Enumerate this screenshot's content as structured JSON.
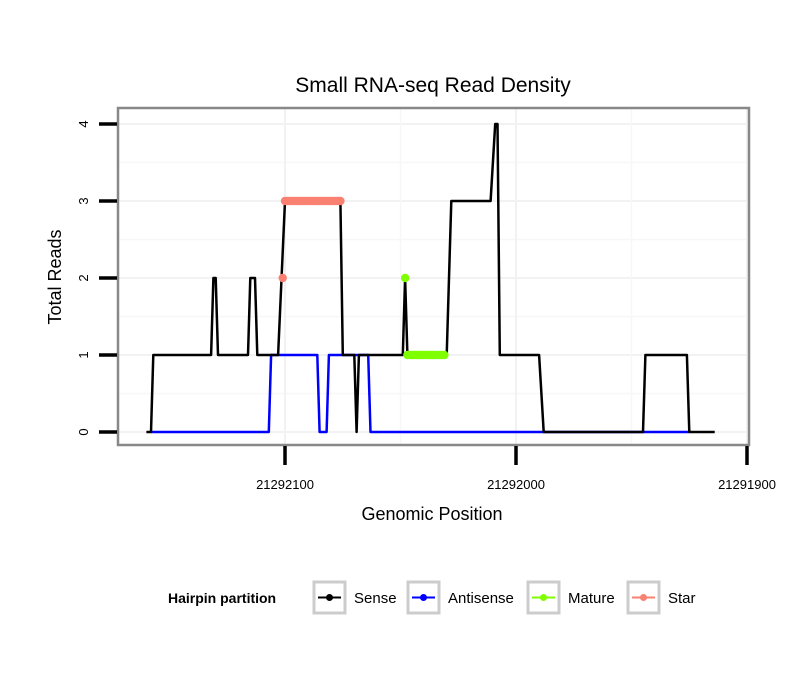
{
  "chart_data": {
    "type": "line",
    "title": "Small RNA-seq Read Density",
    "xlabel": "Genomic Position",
    "ylabel": "Total Reads",
    "xlim": [
      21292160,
      21291900
    ],
    "x_reversed": true,
    "ylim": [
      0,
      4
    ],
    "x_ticks": [
      21292100,
      21292000,
      21291900
    ],
    "x_tick_labels": [
      "21292100",
      "21292000",
      "21291900"
    ],
    "y_ticks": [
      0,
      1,
      2,
      3,
      4
    ],
    "y_tick_labels": [
      "0",
      "1",
      "2",
      "3",
      "4"
    ],
    "grid": true,
    "legend": {
      "title": "Hairpin partition",
      "position": "bottom",
      "entries": [
        {
          "name": "Sense",
          "color": "#000000"
        },
        {
          "name": "Antisense",
          "color": "#0000ff"
        },
        {
          "name": "Mature",
          "color": "#7fff00"
        },
        {
          "name": "Star",
          "color": "#fa8072"
        }
      ]
    },
    "series": [
      {
        "name": "Sense",
        "color": "#000000",
        "kind": "line",
        "points": [
          [
            21292160,
            0
          ],
          [
            21292158,
            0
          ],
          [
            21292157,
            1
          ],
          [
            21292132,
            1
          ],
          [
            21292131,
            2
          ],
          [
            21292130,
            2
          ],
          [
            21292129,
            1
          ],
          [
            21292116,
            1
          ],
          [
            21292115,
            2
          ],
          [
            21292113,
            2
          ],
          [
            21292112,
            1
          ],
          [
            21292103,
            1
          ],
          [
            21292100,
            3
          ],
          [
            21292076,
            3
          ],
          [
            21292075,
            1
          ],
          [
            21292070,
            1
          ],
          [
            21292069,
            0
          ],
          [
            21292068,
            1
          ],
          [
            21292049,
            1
          ],
          [
            21292048,
            2
          ],
          [
            21292047,
            1
          ],
          [
            21292030,
            1
          ],
          [
            21292028,
            3
          ],
          [
            21292011,
            3
          ],
          [
            21292009,
            4
          ],
          [
            21292008,
            4
          ],
          [
            21292007,
            1
          ],
          [
            21291990,
            1
          ],
          [
            21291988,
            0
          ],
          [
            21291945,
            0
          ],
          [
            21291944,
            1
          ],
          [
            21291926,
            1
          ],
          [
            21291925,
            0
          ],
          [
            21291914,
            0
          ]
        ]
      },
      {
        "name": "Antisense",
        "color": "#0000ff",
        "kind": "line",
        "points": [
          [
            21292158,
            0
          ],
          [
            21292107,
            0
          ],
          [
            21292106,
            1
          ],
          [
            21292086,
            1
          ],
          [
            21292085,
            0
          ],
          [
            21292082,
            0
          ],
          [
            21292081,
            1
          ],
          [
            21292064,
            1
          ],
          [
            21292063,
            0
          ],
          [
            21291925,
            0
          ]
        ]
      },
      {
        "name": "Mature",
        "color": "#7fff00",
        "kind": "points",
        "points": [
          [
            21292048,
            2
          ],
          [
            21292047,
            1
          ],
          [
            21292046,
            1
          ],
          [
            21292045,
            1
          ],
          [
            21292044,
            1
          ],
          [
            21292043,
            1
          ],
          [
            21292042,
            1
          ],
          [
            21292041,
            1
          ],
          [
            21292040,
            1
          ],
          [
            21292039,
            1
          ],
          [
            21292038,
            1
          ],
          [
            21292037,
            1
          ],
          [
            21292036,
            1
          ],
          [
            21292035,
            1
          ],
          [
            21292034,
            1
          ],
          [
            21292033,
            1
          ],
          [
            21292032,
            1
          ],
          [
            21292031,
            1
          ]
        ]
      },
      {
        "name": "Star",
        "color": "#fa8072",
        "kind": "points",
        "points": [
          [
            21292101,
            2
          ],
          [
            21292100,
            3
          ],
          [
            21292099,
            3
          ],
          [
            21292098,
            3
          ],
          [
            21292097,
            3
          ],
          [
            21292096,
            3
          ],
          [
            21292095,
            3
          ],
          [
            21292094,
            3
          ],
          [
            21292093,
            3
          ],
          [
            21292092,
            3
          ],
          [
            21292091,
            3
          ],
          [
            21292090,
            3
          ],
          [
            21292089,
            3
          ],
          [
            21292088,
            3
          ],
          [
            21292087,
            3
          ],
          [
            21292086,
            3
          ],
          [
            21292085,
            3
          ],
          [
            21292084,
            3
          ],
          [
            21292083,
            3
          ],
          [
            21292082,
            3
          ],
          [
            21292081,
            3
          ],
          [
            21292080,
            3
          ],
          [
            21292079,
            3
          ],
          [
            21292078,
            3
          ],
          [
            21292077,
            3
          ],
          [
            21292076,
            3
          ]
        ]
      }
    ]
  }
}
